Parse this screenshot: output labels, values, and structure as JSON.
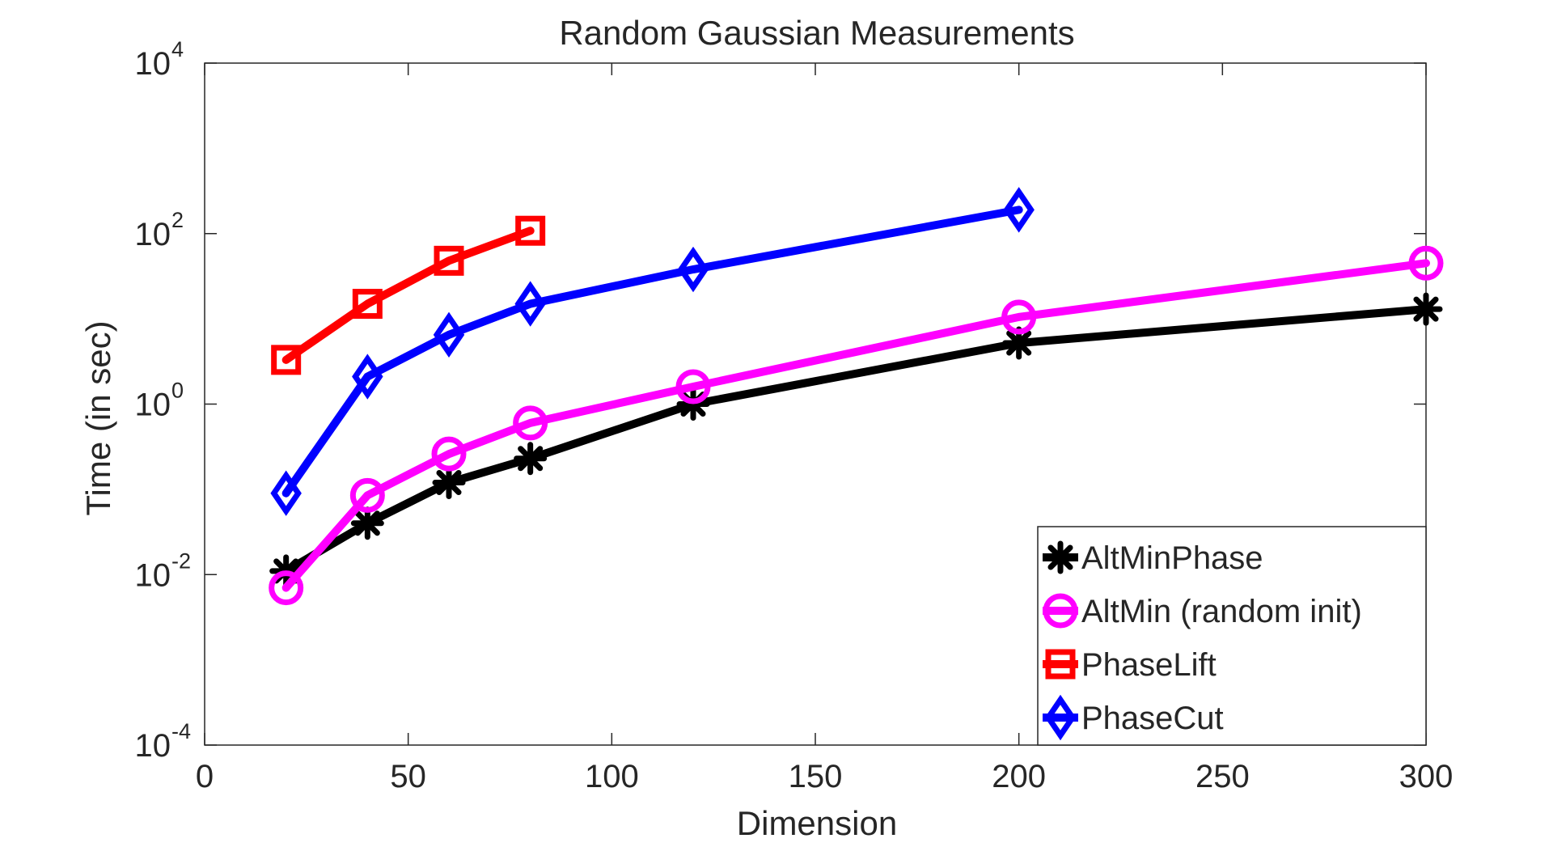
{
  "chart_data": {
    "type": "line",
    "title": "Random Gaussian Measurements",
    "xlabel": "Dimension",
    "ylabel": "Time (in sec)",
    "xlim": [
      0,
      300
    ],
    "ylim": [
      0.0001,
      10000
    ],
    "yscale": "log",
    "xticks": [
      0,
      50,
      100,
      150,
      200,
      250,
      300
    ],
    "xtick_labels": [
      "0",
      "50",
      "100",
      "150",
      "200",
      "250",
      "300"
    ],
    "yticks": [
      0.0001,
      0.01,
      1,
      100,
      10000
    ],
    "ytick_labels": [
      {
        "base": "10",
        "exp": "-4"
      },
      {
        "base": "10",
        "exp": "-2"
      },
      {
        "base": "10",
        "exp": "0"
      },
      {
        "base": "10",
        "exp": "2"
      },
      {
        "base": "10",
        "exp": "4"
      }
    ],
    "grid": false,
    "legend_position": "bottom-right",
    "series": [
      {
        "name": "AltMinPhase",
        "color": "#000000",
        "marker": "asterisk",
        "x": [
          20,
          40,
          60,
          80,
          120,
          200,
          300
        ],
        "y": [
          0.011,
          0.04,
          0.12,
          0.23,
          1.0,
          5.2,
          13
        ]
      },
      {
        "name": "AltMin (random init)",
        "color": "#ff00ff",
        "marker": "circle",
        "x": [
          20,
          40,
          60,
          80,
          120,
          200,
          300
        ],
        "y": [
          0.007,
          0.085,
          0.26,
          0.6,
          1.6,
          10.5,
          45
        ]
      },
      {
        "name": "PhaseLift",
        "color": "#ff0000",
        "marker": "square",
        "x": [
          20,
          40,
          60,
          80
        ],
        "y": [
          3.3,
          15,
          48,
          108
        ]
      },
      {
        "name": "PhaseCut",
        "color": "#0000ff",
        "marker": "diamond",
        "x": [
          20,
          40,
          60,
          80,
          120,
          200
        ],
        "y": [
          0.09,
          2.1,
          6.5,
          15,
          38,
          190
        ]
      }
    ]
  }
}
